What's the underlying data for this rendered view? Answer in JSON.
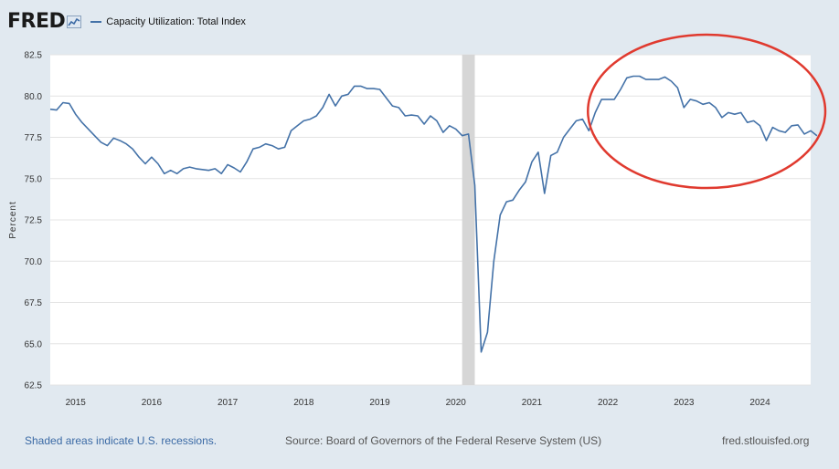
{
  "header": {
    "logo_text": "FRED",
    "legend_label": "Capacity Utilization: Total Index"
  },
  "footer": {
    "recession_note": "Shaded areas indicate U.S. recessions.",
    "source": "Source: Board of Governors of the Federal Reserve System (US)",
    "site": "fred.stlouisfed.org"
  },
  "chart_data": {
    "type": "line",
    "ylabel": "Percent",
    "ylim": [
      62.5,
      82.5
    ],
    "yticks": [
      "62.5",
      "65.0",
      "67.5",
      "70.0",
      "72.5",
      "75.0",
      "77.5",
      "80.0",
      "82.5"
    ],
    "xticks": [
      "2015",
      "2016",
      "2017",
      "2018",
      "2019",
      "2020",
      "2021",
      "2022",
      "2023",
      "2024"
    ],
    "x_range": [
      "2014-09",
      "2024-09"
    ],
    "grid": true,
    "line_color": "#4472a8",
    "recession_color": "#d6d6d6",
    "annotation_color": "#e03a2f",
    "recession": [
      "2020-02",
      "2020-04"
    ],
    "annotation": {
      "shape": "ellipse",
      "from": "2021-11",
      "to": "2024-09"
    },
    "series": [
      {
        "start": "2014-09",
        "values": [
          79.2,
          79.15,
          79.6,
          79.55,
          78.9,
          78.4,
          78.0,
          77.6,
          77.2,
          77.0,
          77.45,
          77.3,
          77.1,
          76.8,
          76.3,
          75.9,
          76.3,
          75.9,
          75.3,
          75.5,
          75.3,
          75.6,
          75.7,
          75.6,
          75.55,
          75.5,
          75.6,
          75.3,
          75.85,
          75.65,
          75.4,
          76.0,
          76.8,
          76.9,
          77.1,
          77.0,
          76.8,
          76.9,
          77.9,
          78.2,
          78.5,
          78.6,
          78.8,
          79.3,
          80.1,
          79.4,
          80.0,
          80.1,
          80.6,
          80.6,
          80.45,
          80.45,
          80.4,
          79.9,
          79.4,
          79.3,
          78.8,
          78.85,
          78.8,
          78.3,
          78.8,
          78.5,
          77.8,
          78.2,
          78.0,
          77.6,
          77.7,
          74.6,
          64.5,
          65.7,
          70.0,
          72.8,
          73.6,
          73.7,
          74.3,
          74.8,
          76.0,
          76.6,
          74.1,
          76.4,
          76.6,
          77.5,
          78.0,
          78.5,
          78.6,
          77.9,
          79.0,
          79.8,
          79.8,
          79.8,
          80.4,
          81.1,
          81.2,
          81.2,
          81.0,
          81.0,
          81.0,
          81.15,
          80.9,
          80.5,
          79.3,
          79.8,
          79.7,
          79.5,
          79.6,
          79.3,
          78.7,
          79.0,
          78.9,
          79.0,
          78.4,
          78.5,
          78.2,
          77.3,
          78.1,
          77.9,
          77.8,
          78.2,
          78.25,
          77.7,
          77.9,
          77.6
        ]
      }
    ]
  }
}
